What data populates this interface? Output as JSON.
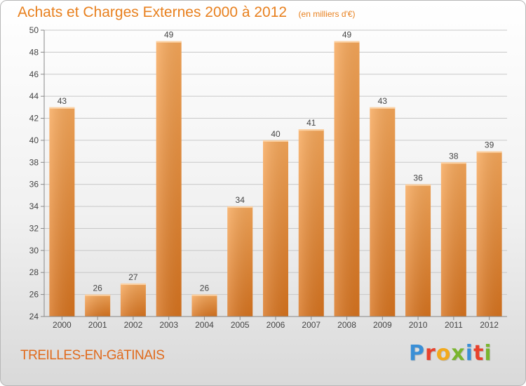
{
  "header": {
    "title": "Achats et Charges Externes 2000 à 2012",
    "subtitle": "(en milliers d'€)"
  },
  "footer": {
    "place": "TREILLES-EN-GâTINAIS",
    "logo": {
      "text": "Proxiti",
      "letter_colors": [
        "#3a8fd6",
        "#e8412c",
        "#f2a91d",
        "#7ab52f",
        "#3a8fd6",
        "#e8412c",
        "#7ab52f"
      ]
    }
  },
  "colors": {
    "bar_light": "#f7a85a",
    "bar_dark": "#d8741f",
    "title": "#e8801e",
    "grid": "#c8c8c8"
  },
  "chart_data": {
    "type": "bar",
    "title": "Achats et Charges Externes 2000 à 2012",
    "subtitle": "(en milliers d'€)",
    "xlabel": "",
    "ylabel": "",
    "categories": [
      "2000",
      "2001",
      "2002",
      "2003",
      "2004",
      "2005",
      "2006",
      "2007",
      "2008",
      "2009",
      "2010",
      "2011",
      "2012"
    ],
    "values": [
      43,
      26,
      27,
      49,
      26,
      34,
      40,
      41,
      49,
      43,
      36,
      38,
      39
    ],
    "ylim": [
      24,
      50
    ],
    "yticks": [
      24,
      26,
      28,
      30,
      32,
      34,
      36,
      38,
      40,
      42,
      44,
      46,
      48,
      50
    ],
    "grid": "horizontal",
    "legend": "none"
  }
}
